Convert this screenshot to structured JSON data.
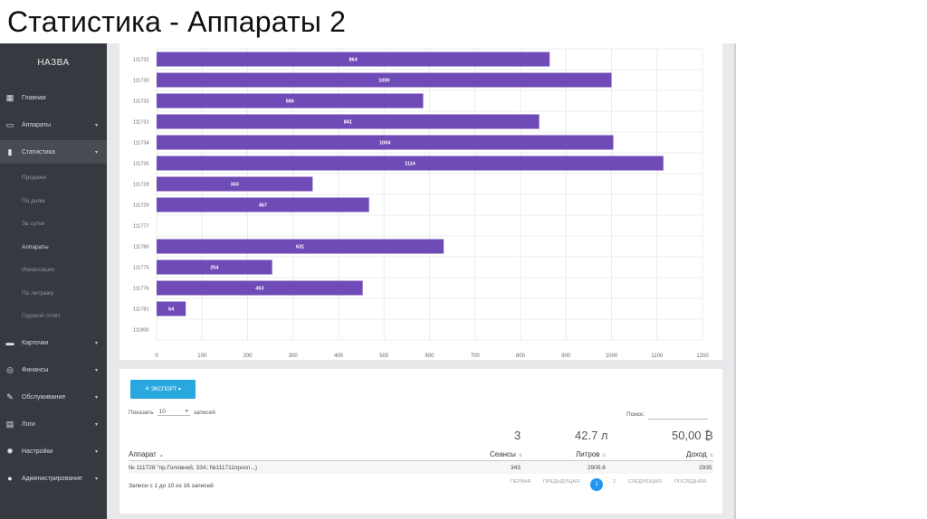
{
  "slide_title": "Статистика - Аппараты 2",
  "sidebar": {
    "brand": "НАЗВА",
    "items": [
      {
        "label": "Главная",
        "icon": "dashboard-icon",
        "glyph": "▦",
        "caret": ""
      },
      {
        "label": "Аппараты",
        "icon": "devices-icon",
        "glyph": "▭",
        "caret": "▾"
      },
      {
        "label": "Статистика",
        "icon": "bar-chart-icon",
        "glyph": "▮",
        "caret": "▾"
      },
      {
        "label": "Карточки",
        "icon": "card-icon",
        "glyph": "▬",
        "caret": "▾"
      },
      {
        "label": "Финансы",
        "icon": "money-icon",
        "glyph": "◎",
        "caret": "▾"
      },
      {
        "label": "Обслуживание",
        "icon": "wrench-icon",
        "glyph": "✎",
        "caret": "▾"
      },
      {
        "label": "Логи",
        "icon": "log-icon",
        "glyph": "▤",
        "caret": "▾"
      },
      {
        "label": "Настройки",
        "icon": "gear-icon",
        "glyph": "✹",
        "caret": "▾"
      },
      {
        "label": "Администрирование",
        "icon": "user-icon",
        "glyph": "●",
        "caret": "▾"
      }
    ],
    "subitems": [
      "Продажи",
      "По дням",
      "За сутки",
      "Аппараты",
      "Инкассация",
      "По литражу",
      "Годовой отчёт"
    ]
  },
  "chart_data": {
    "type": "bar",
    "orientation": "horizontal",
    "categories": [
      "111732",
      "111730",
      "111733",
      "111731",
      "111734",
      "111735",
      "111728",
      "111729",
      "111777",
      "111780",
      "111775",
      "111776",
      "111781",
      "111800"
    ],
    "values": [
      864,
      1000,
      586,
      841,
      1004,
      1114,
      343,
      467,
      null,
      631,
      254,
      453,
      64,
      null
    ],
    "value_labels": [
      "864",
      "1000",
      "586",
      "841",
      "1004",
      "1114",
      "343",
      "467",
      "",
      "631",
      "254",
      "453",
      "64",
      ""
    ],
    "xlim": [
      0,
      1200
    ],
    "xticks": [
      "0",
      "100",
      "200",
      "300",
      "400",
      "500",
      "600",
      "700",
      "800",
      "900",
      "1000",
      "1100",
      "1200"
    ],
    "color": "#6f4bb7",
    "grid": true
  },
  "table": {
    "export_label": "≛ ЭКСПОРТ ▾",
    "show_label": "Показать",
    "page_length": "10",
    "entries_label": "записей",
    "search_label": "Поиск:",
    "totals": {
      "sessions": "3",
      "liters": "42.7 л",
      "income": "50,00 ₿"
    },
    "columns": [
      "Аппарат",
      "Сеансы",
      "Литров",
      "Доход"
    ],
    "rows": [
      {
        "device": "№ 111728 \"пр.Головний, 33А; №111711просп...)",
        "sessions": "343",
        "liters": "2905.6",
        "income": "2935"
      }
    ],
    "info": "Записи с 1 до 10 из 16 записей",
    "pager": {
      "first": "ПЕРВАЯ",
      "prev": "ПРЕДЫДУЩАЯ",
      "page1": "1",
      "page2": "2",
      "next": "СЛЕДУЮЩАЯ",
      "last": "ПОСЛЕДНЯЯ"
    }
  }
}
